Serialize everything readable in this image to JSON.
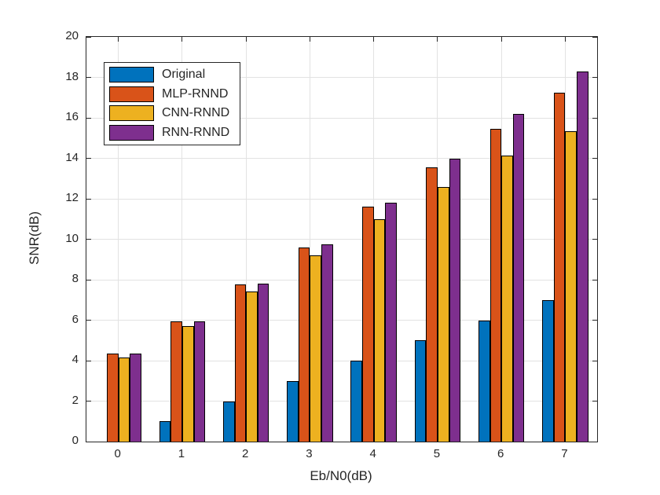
{
  "chart_data": {
    "type": "bar",
    "title": "",
    "xlabel": "Eb/N0(dB)",
    "ylabel": "SNR(dB)",
    "categories": [
      "0",
      "1",
      "2",
      "3",
      "4",
      "5",
      "6",
      "7"
    ],
    "series": [
      {
        "name": "Original",
        "color": "#0072BD",
        "values": [
          0,
          1,
          2,
          3,
          4,
          5,
          6,
          7
        ]
      },
      {
        "name": "MLP-RNND",
        "color": "#D95319",
        "values": [
          4.35,
          5.95,
          7.75,
          9.6,
          11.6,
          13.55,
          15.45,
          17.25
        ]
      },
      {
        "name": "CNN-RNND",
        "color": "#EDB120",
        "values": [
          4.15,
          5.7,
          7.4,
          9.2,
          11.0,
          12.6,
          14.15,
          15.35
        ]
      },
      {
        "name": "RNN-RNND",
        "color": "#7E2F8E",
        "values": [
          4.35,
          5.95,
          7.8,
          9.75,
          11.8,
          14.0,
          16.2,
          18.3
        ]
      }
    ],
    "ylim": [
      0,
      20
    ],
    "ytick_step": 2,
    "grid": true,
    "legend_position": "top-left",
    "colors": {
      "axis": "#262626",
      "grid": "#e2e2e2",
      "background": "#ffffff",
      "bar_edge": "#000000"
    }
  }
}
